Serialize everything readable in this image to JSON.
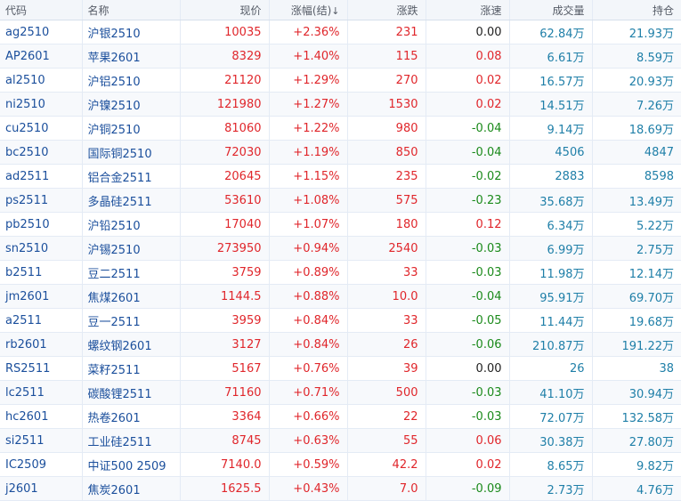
{
  "columns": {
    "code": "代码",
    "name": "名称",
    "price": "现价",
    "change_pct": "涨幅(结)",
    "sort_indicator": "↓",
    "change": "涨跌",
    "speed": "涨速",
    "volume": "成交量",
    "open_interest": "持仓"
  },
  "colors": {
    "up": "#e0262b",
    "down": "#1b8a1b",
    "code": "#1b4f9c",
    "volume": "#1f7fa8"
  },
  "rows": [
    {
      "code": "ag2510",
      "name": "沪银2510",
      "price": "10035",
      "pct": "+2.36%",
      "chg": "231",
      "speed": "0.00",
      "vol": "62.84万",
      "oi": "21.93万"
    },
    {
      "code": "AP2601",
      "name": "苹果2601",
      "price": "8329",
      "pct": "+1.40%",
      "chg": "115",
      "speed": "0.08",
      "vol": "6.61万",
      "oi": "8.59万"
    },
    {
      "code": "al2510",
      "name": "沪铝2510",
      "price": "21120",
      "pct": "+1.29%",
      "chg": "270",
      "speed": "0.02",
      "vol": "16.57万",
      "oi": "20.93万"
    },
    {
      "code": "ni2510",
      "name": "沪镍2510",
      "price": "121980",
      "pct": "+1.27%",
      "chg": "1530",
      "speed": "0.02",
      "vol": "14.51万",
      "oi": "7.26万"
    },
    {
      "code": "cu2510",
      "name": "沪铜2510",
      "price": "81060",
      "pct": "+1.22%",
      "chg": "980",
      "speed": "-0.04",
      "vol": "9.14万",
      "oi": "18.69万"
    },
    {
      "code": "bc2510",
      "name": "国际铜2510",
      "price": "72030",
      "pct": "+1.19%",
      "chg": "850",
      "speed": "-0.04",
      "vol": "4506",
      "oi": "4847"
    },
    {
      "code": "ad2511",
      "name": "铝合金2511",
      "price": "20645",
      "pct": "+1.15%",
      "chg": "235",
      "speed": "-0.02",
      "vol": "2883",
      "oi": "8598"
    },
    {
      "code": "ps2511",
      "name": "多晶硅2511",
      "price": "53610",
      "pct": "+1.08%",
      "chg": "575",
      "speed": "-0.23",
      "vol": "35.68万",
      "oi": "13.49万"
    },
    {
      "code": "pb2510",
      "name": "沪铅2510",
      "price": "17040",
      "pct": "+1.07%",
      "chg": "180",
      "speed": "0.12",
      "vol": "6.34万",
      "oi": "5.22万"
    },
    {
      "code": "sn2510",
      "name": "沪锡2510",
      "price": "273950",
      "pct": "+0.94%",
      "chg": "2540",
      "speed": "-0.03",
      "vol": "6.99万",
      "oi": "2.75万"
    },
    {
      "code": "b2511",
      "name": "豆二2511",
      "price": "3759",
      "pct": "+0.89%",
      "chg": "33",
      "speed": "-0.03",
      "vol": "11.98万",
      "oi": "12.14万"
    },
    {
      "code": "jm2601",
      "name": "焦煤2601",
      "price": "1144.5",
      "pct": "+0.88%",
      "chg": "10.0",
      "speed": "-0.04",
      "vol": "95.91万",
      "oi": "69.70万"
    },
    {
      "code": "a2511",
      "name": "豆一2511",
      "price": "3959",
      "pct": "+0.84%",
      "chg": "33",
      "speed": "-0.05",
      "vol": "11.44万",
      "oi": "19.68万"
    },
    {
      "code": "rb2601",
      "name": "螺纹钢2601",
      "price": "3127",
      "pct": "+0.84%",
      "chg": "26",
      "speed": "-0.06",
      "vol": "210.87万",
      "oi": "191.22万"
    },
    {
      "code": "RS2511",
      "name": "菜籽2511",
      "price": "5167",
      "pct": "+0.76%",
      "chg": "39",
      "speed": "0.00",
      "vol": "26",
      "oi": "38"
    },
    {
      "code": "lc2511",
      "name": "碳酸锂2511",
      "price": "71160",
      "pct": "+0.71%",
      "chg": "500",
      "speed": "-0.03",
      "vol": "41.10万",
      "oi": "30.94万"
    },
    {
      "code": "hc2601",
      "name": "热卷2601",
      "price": "3364",
      "pct": "+0.66%",
      "chg": "22",
      "speed": "-0.03",
      "vol": "72.07万",
      "oi": "132.58万"
    },
    {
      "code": "si2511",
      "name": "工业硅2511",
      "price": "8745",
      "pct": "+0.63%",
      "chg": "55",
      "speed": "0.06",
      "vol": "30.38万",
      "oi": "27.80万"
    },
    {
      "code": "IC2509",
      "name": "中证500 2509",
      "price": "7140.0",
      "pct": "+0.59%",
      "chg": "42.2",
      "speed": "0.02",
      "vol": "8.65万",
      "oi": "9.82万"
    },
    {
      "code": "j2601",
      "name": "焦炭2601",
      "price": "1625.5",
      "pct": "+0.43%",
      "chg": "7.0",
      "speed": "-0.09",
      "vol": "2.73万",
      "oi": "4.76万"
    }
  ]
}
